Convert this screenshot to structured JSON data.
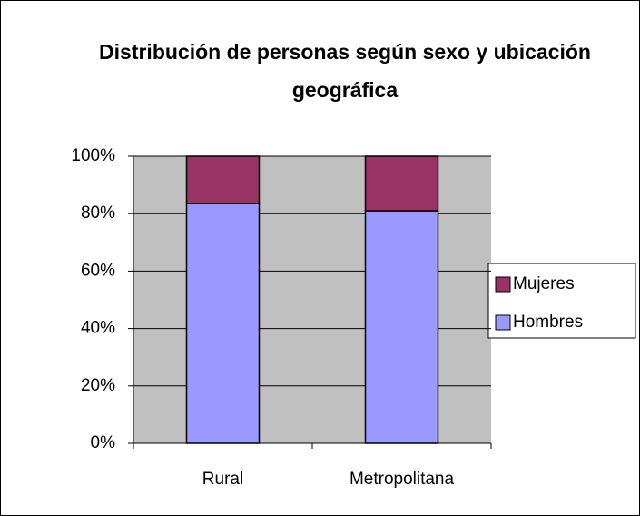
{
  "chart_data": {
    "type": "stacked_bar",
    "title": "Distribución de personas según sexo y ubicación geográfica",
    "categories": [
      "Rural",
      "Metropolitana"
    ],
    "series": [
      {
        "name": "Hombres",
        "color": "#9999ff",
        "values": [
          83.5,
          81
        ]
      },
      {
        "name": "Mujeres",
        "color": "#993366",
        "values": [
          16.5,
          19
        ]
      }
    ],
    "ylim": [
      0,
      100
    ],
    "yticks": [
      {
        "value": 0,
        "label": "0%"
      },
      {
        "value": 20,
        "label": "20%"
      },
      {
        "value": 40,
        "label": "40%"
      },
      {
        "value": 60,
        "label": "60%"
      },
      {
        "value": 80,
        "label": "80%"
      },
      {
        "value": 100,
        "label": "100%"
      }
    ],
    "grid": true,
    "legend": "right"
  }
}
